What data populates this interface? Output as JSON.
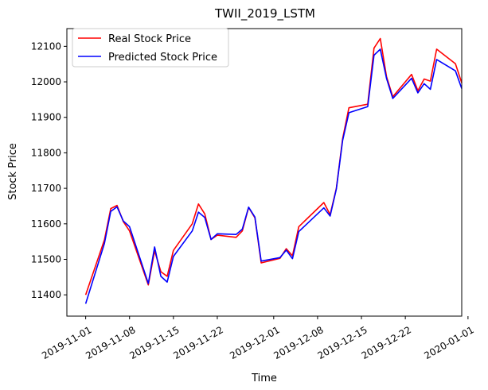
{
  "chart_data": {
    "type": "line",
    "title": "TWII_2019_LSTM",
    "xlabel": "Time",
    "ylabel": "Stock Price",
    "xlim": [
      "2019-10-29",
      "2019-12-31"
    ],
    "ylim": [
      11340,
      12150
    ],
    "x_ticks": [
      "2019-11-01",
      "2019-11-08",
      "2019-11-15",
      "2019-11-22",
      "2019-12-01",
      "2019-12-08",
      "2019-12-15",
      "2019-12-22",
      "2020-01-01"
    ],
    "y_ticks": [
      11400,
      11500,
      11600,
      11700,
      11800,
      11900,
      12000,
      12100
    ],
    "grid": false,
    "legend_position": "top-left",
    "x": [
      "2019-11-01",
      "2019-11-04",
      "2019-11-05",
      "2019-11-06",
      "2019-11-07",
      "2019-11-08",
      "2019-11-11",
      "2019-11-12",
      "2019-11-13",
      "2019-11-14",
      "2019-11-15",
      "2019-11-18",
      "2019-11-19",
      "2019-11-20",
      "2019-11-21",
      "2019-11-22",
      "2019-11-25",
      "2019-11-26",
      "2019-11-27",
      "2019-11-28",
      "2019-11-29",
      "2019-12-02",
      "2019-12-03",
      "2019-12-04",
      "2019-12-05",
      "2019-12-09",
      "2019-12-10",
      "2019-12-11",
      "2019-12-12",
      "2019-12-13",
      "2019-12-16",
      "2019-12-17",
      "2019-12-18",
      "2019-12-19",
      "2019-12-20",
      "2019-12-23",
      "2019-12-24",
      "2019-12-25",
      "2019-12-26",
      "2019-12-27",
      "2019-12-30",
      "2019-12-31"
    ],
    "series": [
      {
        "name": "Real Stock Price",
        "color": "#ff0000",
        "values": [
          11400,
          11555,
          11643,
          11652,
          11606,
          11580,
          11428,
          11524,
          11465,
          11452,
          11525,
          11600,
          11656,
          11628,
          11556,
          11568,
          11562,
          11580,
          11646,
          11617,
          11490,
          11503,
          11530,
          11510,
          11592,
          11660,
          11626,
          11700,
          11840,
          11927,
          11937,
          12095,
          12122,
          12015,
          11958,
          12021,
          11975,
          12008,
          12002,
          12092,
          12051,
          11997
        ]
      },
      {
        "name": "Predicted Stock Price",
        "color": "#0000ff",
        "values": [
          11375,
          11545,
          11635,
          11648,
          11608,
          11592,
          11432,
          11535,
          11452,
          11436,
          11508,
          11580,
          11633,
          11618,
          11556,
          11572,
          11570,
          11585,
          11647,
          11619,
          11495,
          11505,
          11526,
          11502,
          11578,
          11645,
          11622,
          11698,
          11835,
          11913,
          11930,
          12075,
          12092,
          12010,
          11953,
          12010,
          11969,
          11995,
          11979,
          12063,
          12031,
          11981
        ]
      }
    ]
  }
}
